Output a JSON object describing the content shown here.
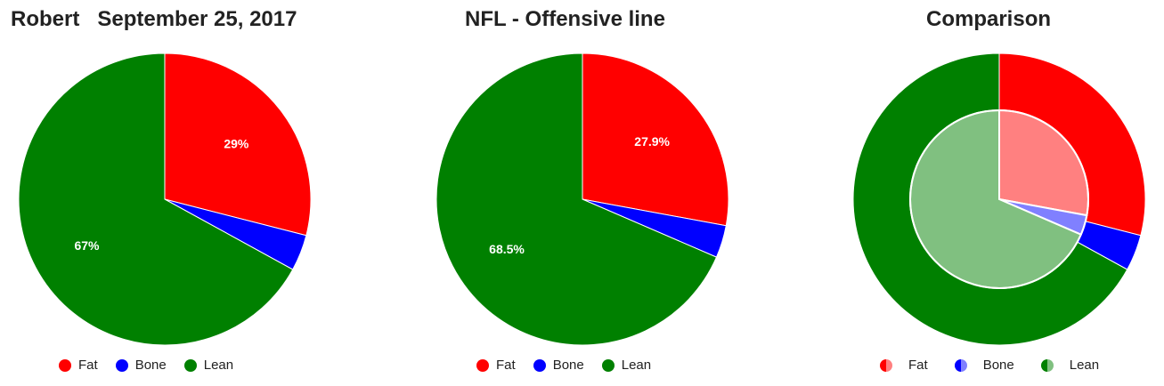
{
  "colors": {
    "fat": "#ff0000",
    "bone": "#0000ff",
    "lean": "#008000",
    "fat_light": "#ff8080",
    "bone_light": "#8080ff",
    "lean_light": "#80c080"
  },
  "chart_data": [
    {
      "type": "pie",
      "title_name": "Robert",
      "title_date": "September 25, 2017",
      "slices": [
        {
          "label": "Fat",
          "value": 29,
          "display": "29%"
        },
        {
          "label": "Bone",
          "value": 4,
          "display": ""
        },
        {
          "label": "Lean",
          "value": 67,
          "display": "67%"
        }
      ],
      "legend": [
        "Fat",
        "Bone",
        "Lean"
      ],
      "legend_position": "bottom"
    },
    {
      "type": "pie",
      "title": "NFL - Offensive line",
      "slices": [
        {
          "label": "Fat",
          "value": 27.9,
          "display": "27.9%"
        },
        {
          "label": "Bone",
          "value": 3.6,
          "display": ""
        },
        {
          "label": "Lean",
          "value": 68.5,
          "display": "68.5%"
        }
      ],
      "legend": [
        "Fat",
        "Bone",
        "Lean"
      ],
      "legend_position": "bottom"
    },
    {
      "type": "pie",
      "title": "Comparison",
      "outer_slices": [
        {
          "label": "Fat",
          "value": 29
        },
        {
          "label": "Bone",
          "value": 4
        },
        {
          "label": "Lean",
          "value": 67
        }
      ],
      "inner_slices": [
        {
          "label": "Fat",
          "value": 27.9
        },
        {
          "label": "Bone",
          "value": 3.6
        },
        {
          "label": "Lean",
          "value": 68.5
        }
      ],
      "legend": [
        "Fat",
        "Bone",
        "Lean"
      ],
      "legend_position": "bottom"
    }
  ]
}
